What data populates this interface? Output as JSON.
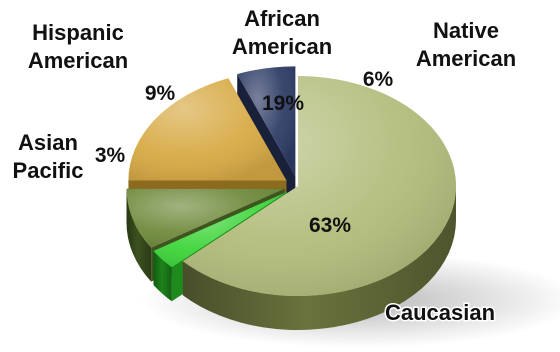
{
  "chart_data": {
    "type": "pie",
    "title": "",
    "slices": [
      {
        "label": "Caucasian",
        "value": 63,
        "value_label": "63%",
        "color": "#b3bd7c",
        "dark": "#6f7840",
        "exploded": false
      },
      {
        "label": "Asian Pacific",
        "label_lines": [
          "Asian",
          "Pacific"
        ],
        "value": 3,
        "value_label": "3%",
        "color": "#3fd53b",
        "dark": "#1e8a1d",
        "exploded": true
      },
      {
        "label": "Hispanic American",
        "label_lines": [
          "Hispanic",
          "American"
        ],
        "value": 9,
        "value_label": "9%",
        "color": "#6f8a3c",
        "dark": "#3e5520",
        "exploded": true
      },
      {
        "label": "African American",
        "label_lines": [
          "African",
          "American"
        ],
        "value": 19,
        "value_label": "19%",
        "color": "#d7aa45",
        "dark": "#8c6a1e",
        "exploded": true
      },
      {
        "label": "Native American",
        "label_lines": [
          "Native",
          "American"
        ],
        "value": 6,
        "value_label": "6%",
        "color": "#2f3d66",
        "dark": "#18203a",
        "exploded": true
      }
    ]
  }
}
